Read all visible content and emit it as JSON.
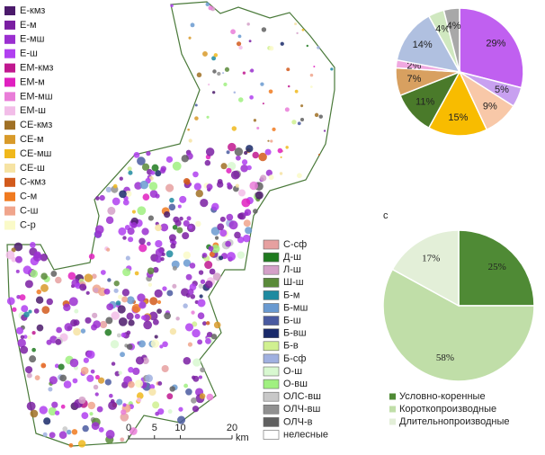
{
  "map": {
    "legend_left": [
      {
        "label": "Е-кмз",
        "color": "#4b1a6b"
      },
      {
        "label": "Е-м",
        "color": "#7a1fa2"
      },
      {
        "label": "Е-мш",
        "color": "#9b2fd0"
      },
      {
        "label": "Е-ш",
        "color": "#b040f0"
      },
      {
        "label": "ЕМ-кмз",
        "color": "#c0188f"
      },
      {
        "label": "ЕМ-м",
        "color": "#e020c0"
      },
      {
        "label": "ЕМ-мш",
        "color": "#e97dd8"
      },
      {
        "label": "ЕМ-ш",
        "color": "#f2bde8"
      },
      {
        "label": "СЕ-кмз",
        "color": "#a07025"
      },
      {
        "label": "СЕ-м",
        "color": "#d89a2a"
      },
      {
        "label": "СЕ-мш",
        "color": "#f0b81c"
      },
      {
        "label": "СЕ-ш",
        "color": "#f6e3a3"
      },
      {
        "label": "С-кмз",
        "color": "#d25a1c"
      },
      {
        "label": "С-м",
        "color": "#f07a20"
      },
      {
        "label": "С-ш",
        "color": "#f0a58c"
      },
      {
        "label": "С-р",
        "color": "#fafac8"
      }
    ],
    "legend_right": [
      {
        "label": "С-сф",
        "color": "#e6a0a0"
      },
      {
        "label": "Д-ш",
        "color": "#1f7a1f"
      },
      {
        "label": "Л-ш",
        "color": "#d4a0c8"
      },
      {
        "label": "Ш-ш",
        "color": "#5a8a3a"
      },
      {
        "label": "Б-м",
        "color": "#1f8aa0"
      },
      {
        "label": "Б-мш",
        "color": "#6a9ad0"
      },
      {
        "label": "Б-ш",
        "color": "#4a5aa0"
      },
      {
        "label": "Б-вш",
        "color": "#1a2a6a"
      },
      {
        "label": "Б-в",
        "color": "#d0f090"
      },
      {
        "label": "Б-сф",
        "color": "#a0b0e0"
      },
      {
        "label": "О-ш",
        "color": "#d8f8d0"
      },
      {
        "label": "О-вш",
        "color": "#a0f080"
      },
      {
        "label": "ОЛС-вш",
        "color": "#c8c8c8"
      },
      {
        "label": "ОЛЧ-вш",
        "color": "#909090"
      },
      {
        "label": "ОЛЧ-в",
        "color": "#606060"
      },
      {
        "label": "нелесные",
        "color": "#ffffff"
      }
    ],
    "scale": {
      "ticks": [
        0,
        5,
        10,
        20
      ],
      "unit": "km"
    }
  },
  "chart_data": [
    {
      "type": "pie",
      "values": [
        29,
        5,
        9,
        15,
        11,
        7,
        2,
        14,
        4,
        4
      ],
      "value_labels": [
        "29%",
        "5%",
        "9%",
        "15%",
        "11%",
        "7%",
        "2%",
        "14%",
        "4%",
        "4%"
      ],
      "colors": [
        "#c060f0",
        "#c8a0f0",
        "#f8c8a8",
        "#f8bc00",
        "#4a7a2a",
        "#d8a060",
        "#f0a8e0",
        "#b0c0e0",
        "#d0e8c0",
        "#a8a8a8"
      ]
    },
    {
      "type": "pie",
      "label": "с",
      "categories": [
        "Условно-коренные",
        "Короткопроизводные",
        "Длительнопроизводные"
      ],
      "values": [
        25,
        58,
        17
      ],
      "value_labels": [
        "25%",
        "58%",
        "17%"
      ],
      "colors": [
        "#4f8a35",
        "#c0dea8",
        "#e3efd8"
      ]
    }
  ]
}
